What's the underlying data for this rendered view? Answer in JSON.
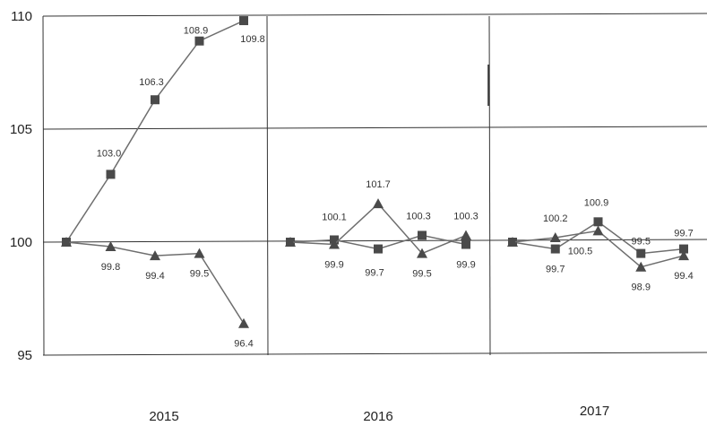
{
  "chart_data": {
    "type": "line",
    "ylim": [
      95,
      110
    ],
    "yticks": [
      "95",
      "100",
      "105",
      "110"
    ],
    "grid": true,
    "panels": [
      {
        "label": "2015",
        "series": [
          {
            "marker": "square",
            "values": [
              100.0,
              103.0,
              106.3,
              108.9,
              109.8
            ],
            "labels": [
              "",
              "103.0",
              "106.3",
              "108.9",
              "109.8"
            ]
          },
          {
            "marker": "triangle",
            "values": [
              100.0,
              99.8,
              99.4,
              99.5,
              96.4
            ],
            "labels": [
              "",
              "99.8",
              "99.4",
              "99.5",
              "96.4"
            ]
          }
        ]
      },
      {
        "label": "2016",
        "series": [
          {
            "marker": "square",
            "values": [
              100.0,
              100.1,
              99.7,
              100.3,
              99.9
            ],
            "labels": [
              "",
              "",
              "",
              "100.3",
              "99.9"
            ]
          },
          {
            "marker": "triangle",
            "values": [
              100.0,
              99.9,
              101.7,
              99.5,
              100.3
            ],
            "labels": [
              "",
              "99.9",
              "101.7",
              "99.5",
              "100.3"
            ]
          }
        ],
        "extra_labels": [
          "100.1",
          "99.7"
        ]
      },
      {
        "label": "2017",
        "series": [
          {
            "marker": "square",
            "values": [
              100.0,
              99.7,
              100.9,
              99.5,
              99.7
            ],
            "labels": [
              "",
              "99.7",
              "100.9",
              "99.5",
              "99.7"
            ]
          },
          {
            "marker": "triangle",
            "values": [
              100.0,
              100.2,
              100.5,
              98.9,
              99.4
            ],
            "labels": [
              "",
              "100.2",
              "100.5",
              "98.9",
              "99.4"
            ]
          }
        ]
      }
    ],
    "colors": {
      "line": "#6e6e6e",
      "marker": "#4a4a4a",
      "grid": "#333333"
    }
  }
}
